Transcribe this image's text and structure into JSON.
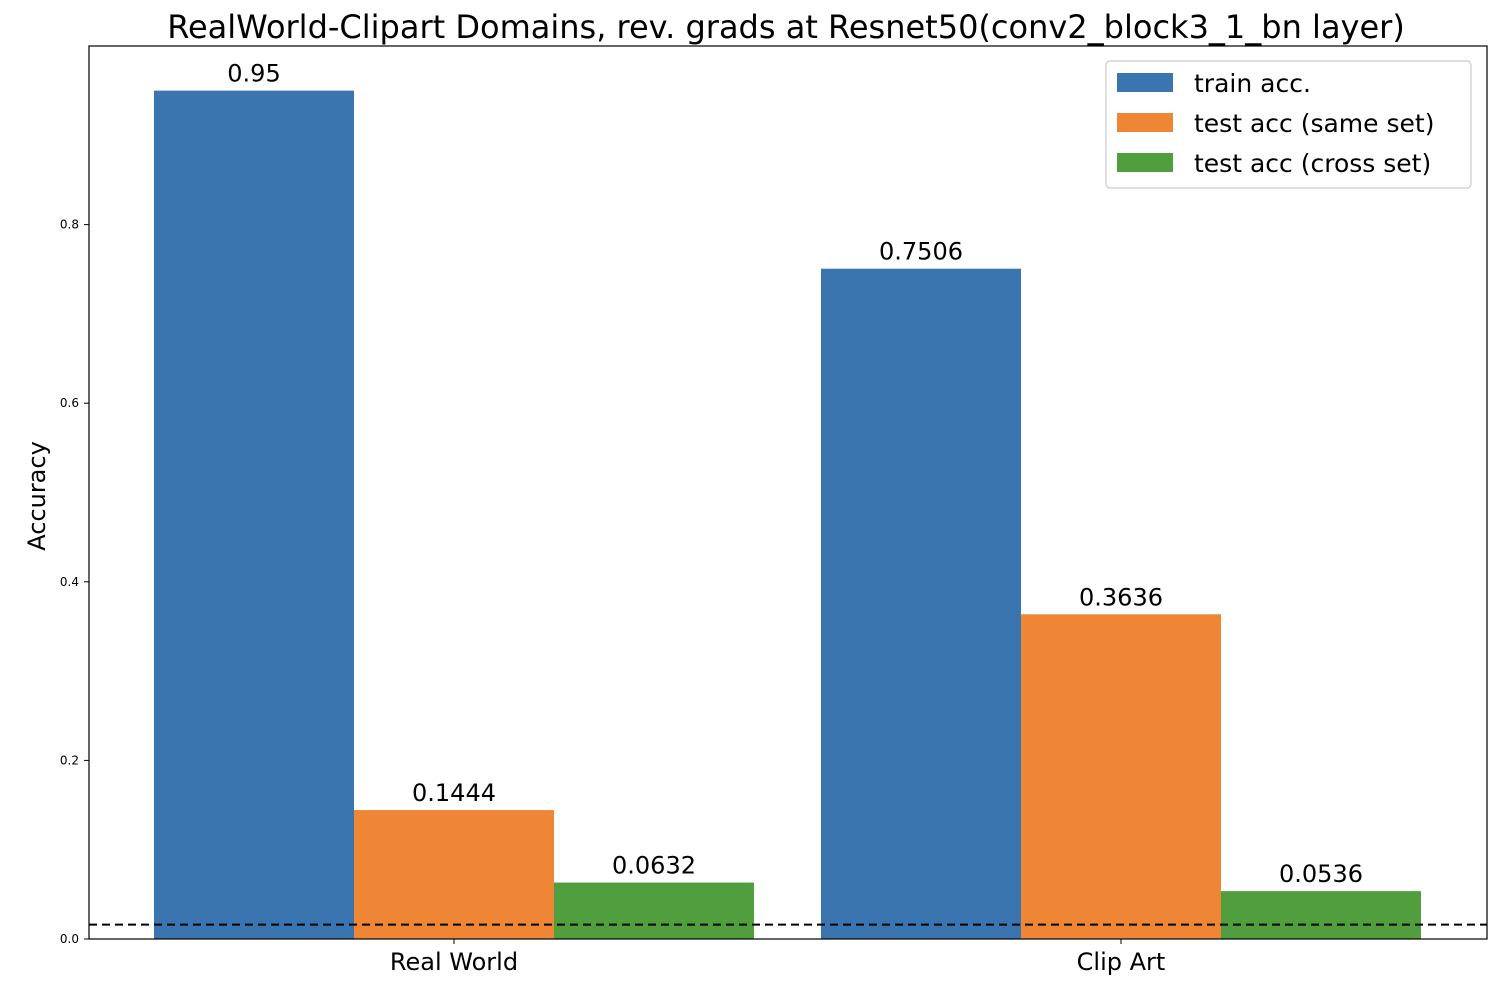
{
  "chart_data": {
    "type": "bar",
    "title": "RealWorld-Clipart Domains, rev. grads at Resnet50(conv2_block3_1_bn layer)",
    "xlabel": "",
    "ylabel": "Accuracy",
    "categories": [
      "Real World",
      "Clip Art"
    ],
    "series": [
      {
        "name": "train acc.",
        "values": [
          0.95,
          0.7506
        ],
        "labels": [
          "0.95",
          "0.7506"
        ],
        "color": "#3a75af"
      },
      {
        "name": "test acc (same set)",
        "values": [
          0.1444,
          0.3636
        ],
        "labels": [
          "0.1444",
          "0.3636"
        ],
        "color": "#ef8636"
      },
      {
        "name": "test acc (cross set)",
        "values": [
          0.0632,
          0.0536
        ],
        "labels": [
          "0.0632",
          "0.0536"
        ],
        "color": "#519e3e"
      }
    ],
    "ylim": [
      0,
      1.0
    ],
    "yticks": [
      "0.0",
      "0.2",
      "0.4",
      "0.6",
      "0.8"
    ],
    "yticks_values": [
      0.0,
      0.2,
      0.4,
      0.6,
      0.8
    ],
    "reference_line": {
      "value": 0.0161,
      "style": "dashed",
      "color": "#000000"
    },
    "legend_position": "top-right",
    "grid": false
  }
}
